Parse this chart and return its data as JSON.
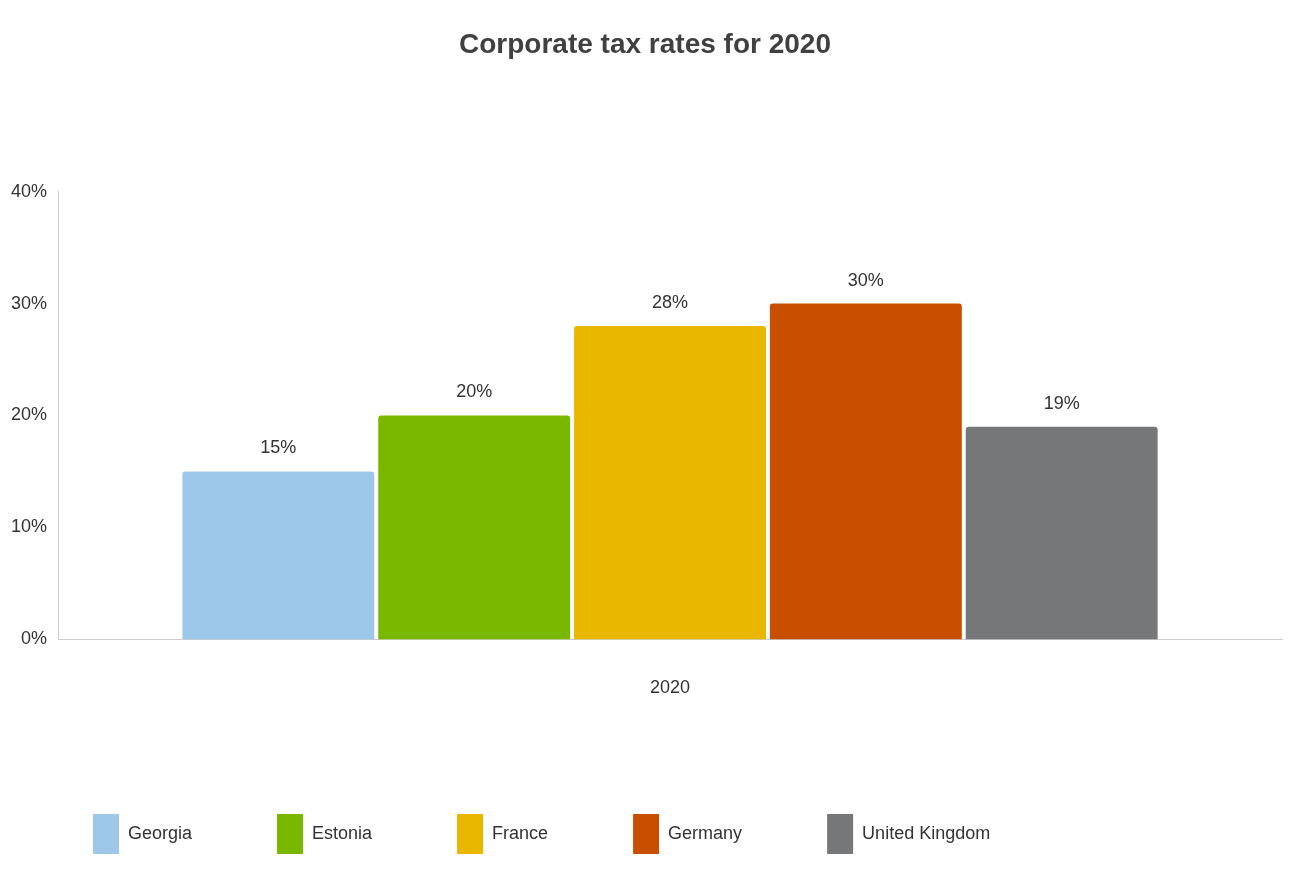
{
  "chart_data": {
    "type": "bar",
    "title": "Corporate tax rates for 2020",
    "categories": [
      "2020"
    ],
    "series": [
      {
        "name": "Georgia",
        "color": "#9dc8ea",
        "values": [
          15
        ],
        "value_labels": [
          "15%"
        ]
      },
      {
        "name": "Estonia",
        "color": "#7ab800",
        "values": [
          20
        ],
        "value_labels": [
          "20%"
        ]
      },
      {
        "name": "France",
        "color": "#eab700",
        "values": [
          28
        ],
        "value_labels": [
          "28%"
        ]
      },
      {
        "name": "Germany",
        "color": "#c84e00",
        "values": [
          30
        ],
        "value_labels": [
          "30%"
        ]
      },
      {
        "name": "United Kingdom",
        "color": "#757779",
        "values": [
          19
        ],
        "value_labels": [
          "19%"
        ]
      }
    ],
    "ylim": [
      0,
      40
    ],
    "yticks": [
      {
        "value": 0,
        "label": "0%"
      },
      {
        "value": 10,
        "label": "10%"
      },
      {
        "value": 20,
        "label": "20%"
      },
      {
        "value": 30,
        "label": "30%"
      },
      {
        "value": 40,
        "label": "40%"
      }
    ],
    "legend": "bottom"
  }
}
